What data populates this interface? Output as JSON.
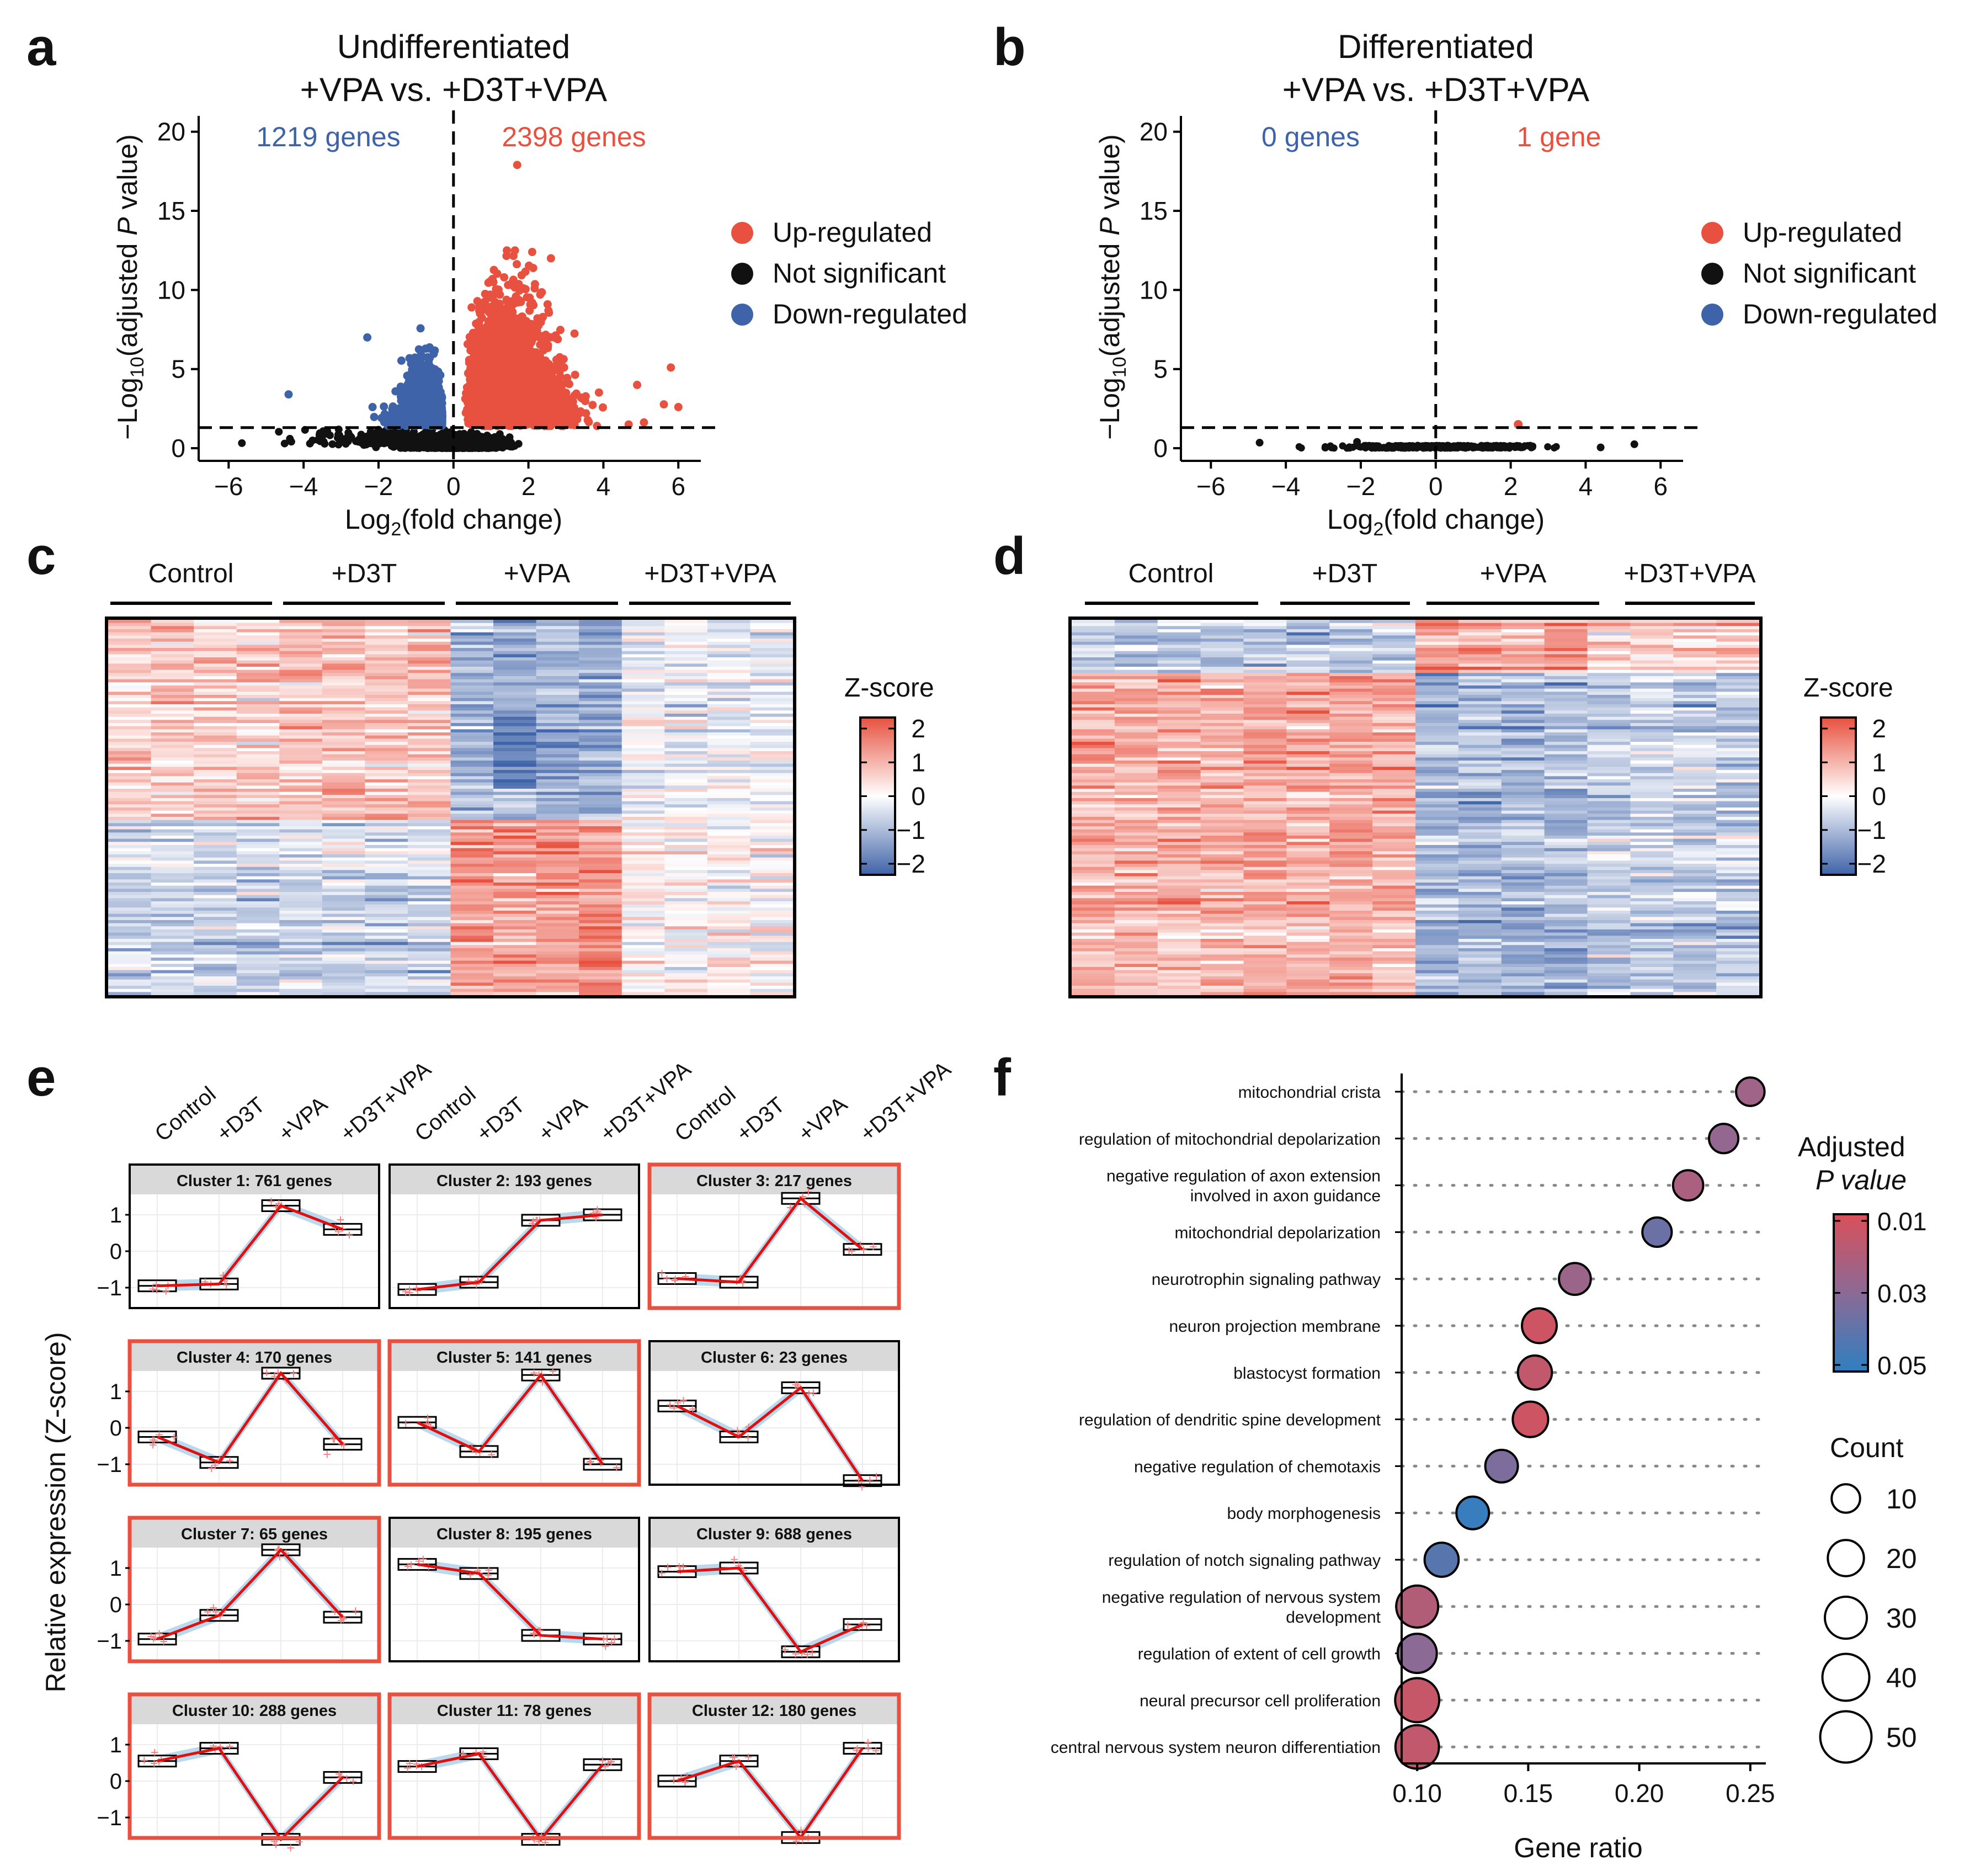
{
  "colors": {
    "up": "#e8513f",
    "down": "#3f63a8",
    "ns": "#111111",
    "heat_hi": "#e8513f",
    "heat_lo": "#3f63a8",
    "pmin": "#d9505a",
    "pmax": "#2f7fc1",
    "line": "#e01010",
    "band": "#a9cfe8",
    "cluster_hl": "#e8513f"
  },
  "panels": {
    "a": {
      "label": "a",
      "title_line1": "Undifferentiated",
      "title_line2": "+VPA vs. +D3T+VPA",
      "down_count": "1219 genes",
      "up_count": "2398 genes",
      "xlabel": "Log2(fold change)",
      "ylabel": "−Log10(adjusted P value)"
    },
    "b": {
      "label": "b",
      "title_line1": "Differentiated",
      "title_line2": "+VPA vs. +D3T+VPA",
      "down_count": "0 genes",
      "up_count": "1 gene",
      "xlabel": "Log2(fold change)",
      "ylabel": "−Log10(adjusted P value)"
    },
    "c": {
      "label": "c",
      "groups": [
        "Control",
        "+D3T",
        "+VPA",
        "+D3T+VPA"
      ],
      "zscore_title": "Z-score"
    },
    "d": {
      "label": "d",
      "groups": [
        "Control",
        "+D3T",
        "+VPA",
        "+D3T+VPA"
      ],
      "zscore_title": "Z-score"
    },
    "e": {
      "label": "e",
      "ylabel": "Relative expression (Z-score)",
      "xcats": [
        "Control",
        "+D3T",
        "+VPA",
        "+D3T+VPA"
      ]
    },
    "f": {
      "label": "f",
      "xlabel": "Gene ratio",
      "legend_p_title1": "Adjusted",
      "legend_p_title2": "P value",
      "legend_count_title": "Count"
    }
  },
  "legend_volcano": {
    "up": "Up-regulated",
    "ns": "Not significant",
    "down": "Down-regulated"
  },
  "chart_data": [
    {
      "id": "volcano_a",
      "type": "scatter",
      "xlim": [
        -6.8,
        6.6
      ],
      "ylim": [
        -0.8,
        21
      ],
      "xticks": [
        -6,
        -4,
        -2,
        0,
        2,
        4,
        6
      ],
      "yticks": [
        0,
        5,
        10,
        15,
        20
      ],
      "threshold_y": 1.3,
      "threshold_x": 0,
      "n_down": 1219,
      "n_up": 2398,
      "highlights": [
        {
          "x": 1.7,
          "y": 17.9
        },
        {
          "x": 2.1,
          "y": 12.4
        },
        {
          "x": 2.6,
          "y": 12.0
        },
        {
          "x": -2.3,
          "y": 7.0
        },
        {
          "x": -4.4,
          "y": 3.4
        },
        {
          "x": 5.8,
          "y": 5.1
        },
        {
          "x": 4.9,
          "y": 4.0
        },
        {
          "x": 6.0,
          "y": 2.6
        }
      ]
    },
    {
      "id": "volcano_b",
      "type": "scatter",
      "xlim": [
        -6.8,
        6.6
      ],
      "ylim": [
        -0.8,
        21
      ],
      "xticks": [
        -6,
        -4,
        -2,
        0,
        2,
        4,
        6
      ],
      "yticks": [
        0,
        5,
        10,
        15,
        20
      ],
      "threshold_y": 1.3,
      "threshold_x": 0,
      "n_down": 0,
      "n_up": 1,
      "up_point": {
        "x": 2.2,
        "y": 1.5
      }
    },
    {
      "id": "heatmap_c",
      "type": "heatmap",
      "columns": 16,
      "groups": [
        "Control",
        "+D3T",
        "+VPA",
        "+D3T+VPA"
      ],
      "scale": [
        -2,
        2
      ],
      "ticks": [
        2,
        1,
        0,
        -1,
        -2
      ]
    },
    {
      "id": "heatmap_d",
      "type": "heatmap",
      "columns": 16,
      "groups": [
        "Control",
        "+D3T",
        "+VPA",
        "+D3T+VPA"
      ],
      "scale": [
        -2,
        2
      ],
      "ticks": [
        2,
        1,
        0,
        -1,
        -2
      ]
    },
    {
      "id": "clusters_e",
      "type": "line",
      "x": [
        "Control",
        "+D3T",
        "+VPA",
        "+D3T+VPA"
      ],
      "yticks": [
        1,
        0,
        -1
      ],
      "clusters": [
        {
          "name": "Cluster 1: 761 genes",
          "values": [
            -0.95,
            -0.9,
            1.25,
            0.6
          ],
          "hl": false
        },
        {
          "name": "Cluster 2: 193 genes",
          "values": [
            -1.05,
            -0.85,
            0.85,
            1.0
          ],
          "hl": false
        },
        {
          "name": "Cluster 3: 217 genes",
          "values": [
            -0.75,
            -0.85,
            1.45,
            0.05
          ],
          "hl": true
        },
        {
          "name": "Cluster 4: 170 genes",
          "values": [
            -0.25,
            -0.95,
            1.5,
            -0.45
          ],
          "hl": true
        },
        {
          "name": "Cluster 5: 141 genes",
          "values": [
            0.15,
            -0.65,
            1.45,
            -1.0
          ],
          "hl": true
        },
        {
          "name": "Cluster 6: 23 genes",
          "values": [
            0.6,
            -0.25,
            1.1,
            -1.45
          ],
          "hl": false
        },
        {
          "name": "Cluster 7: 65 genes",
          "values": [
            -0.95,
            -0.3,
            1.5,
            -0.35
          ],
          "hl": true
        },
        {
          "name": "Cluster 8: 195 genes",
          "values": [
            1.1,
            0.85,
            -0.85,
            -0.95
          ],
          "hl": false
        },
        {
          "name": "Cluster 9: 688 genes",
          "values": [
            0.9,
            1.0,
            -1.3,
            -0.55
          ],
          "hl": false
        },
        {
          "name": "Cluster 10: 288 genes",
          "values": [
            0.55,
            0.9,
            -1.6,
            0.1
          ],
          "hl": true
        },
        {
          "name": "Cluster 11: 78 genes",
          "values": [
            0.4,
            0.75,
            -1.6,
            0.45
          ],
          "hl": true
        },
        {
          "name": "Cluster 12: 180 genes",
          "values": [
            0.0,
            0.55,
            -1.55,
            0.9
          ],
          "hl": true
        }
      ]
    },
    {
      "id": "enrichment_f",
      "type": "scatter",
      "xlabel": "Gene ratio",
      "xlim": [
        0.093,
        0.257
      ],
      "xticks": [
        0.1,
        0.15,
        0.2,
        0.25
      ],
      "p_ticks": [
        "0.01",
        "0.03",
        "0.05"
      ],
      "count_ticks": [
        10,
        20,
        30,
        40,
        50
      ],
      "terms": [
        {
          "term": [
            "mitochondrial crista"
          ],
          "ratio": 0.25,
          "padj": 0.025,
          "count": 10
        },
        {
          "term": [
            "regulation of mitochondrial depolarization"
          ],
          "ratio": 0.238,
          "padj": 0.028,
          "count": 11
        },
        {
          "term": [
            "negative regulation of axon extension",
            "involved in axon guidance"
          ],
          "ratio": 0.222,
          "padj": 0.022,
          "count": 12
        },
        {
          "term": [
            "mitochondrial depolarization"
          ],
          "ratio": 0.208,
          "padj": 0.037,
          "count": 11
        },
        {
          "term": [
            "neurotrophin signaling pathway"
          ],
          "ratio": 0.171,
          "padj": 0.026,
          "count": 14
        },
        {
          "term": [
            "neuron projection membrane"
          ],
          "ratio": 0.155,
          "padj": 0.013,
          "count": 18
        },
        {
          "term": [
            "blastocyst formation"
          ],
          "ratio": 0.153,
          "padj": 0.016,
          "count": 17
        },
        {
          "term": [
            "regulation of dendritic spine development"
          ],
          "ratio": 0.151,
          "padj": 0.013,
          "count": 19
        },
        {
          "term": [
            "negative regulation of chemotaxis"
          ],
          "ratio": 0.138,
          "padj": 0.033,
          "count": 15
        },
        {
          "term": [
            "body morphogenesis"
          ],
          "ratio": 0.125,
          "padj": 0.048,
          "count": 15
        },
        {
          "term": [
            "regulation of notch signaling pathway"
          ],
          "ratio": 0.111,
          "padj": 0.041,
          "count": 17
        },
        {
          "term": [
            "negative regulation of nervous system",
            "development"
          ],
          "ratio": 0.1,
          "padj": 0.02,
          "count": 30
        },
        {
          "term": [
            "regulation of extent of cell growth"
          ],
          "ratio": 0.1,
          "padj": 0.03,
          "count": 25
        },
        {
          "term": [
            "neural precursor cell proliferation"
          ],
          "ratio": 0.1,
          "padj": 0.015,
          "count": 34
        },
        {
          "term": [
            "central nervous system neuron differentiation"
          ],
          "ratio": 0.1,
          "padj": 0.016,
          "count": 33
        }
      ]
    }
  ]
}
